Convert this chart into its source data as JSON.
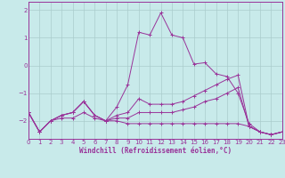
{
  "background_color": "#c8eaea",
  "grid_color": "#aacccc",
  "line_color": "#993399",
  "xlim": [
    0,
    23
  ],
  "ylim": [
    -2.65,
    2.3
  ],
  "yticks": [
    -2,
    -1,
    0,
    1,
    2
  ],
  "xticks": [
    0,
    1,
    2,
    3,
    4,
    5,
    6,
    7,
    8,
    9,
    10,
    11,
    12,
    13,
    14,
    15,
    16,
    17,
    18,
    19,
    20,
    21,
    22,
    23
  ],
  "xlabel": "Windchill (Refroidissement éolien,°C)",
  "series": [
    {
      "y": [
        -1.7,
        -2.4,
        -2.0,
        -1.8,
        -1.7,
        -1.3,
        -1.8,
        -2.0,
        -1.5,
        -0.7,
        1.2,
        1.1,
        1.9,
        1.1,
        1.0,
        0.05,
        0.1,
        -0.3,
        -0.4,
        -1.0,
        -2.1,
        -2.4,
        -2.5,
        -2.4
      ]
    },
    {
      "y": [
        -1.7,
        -2.4,
        -2.0,
        -1.8,
        -1.7,
        -1.3,
        -1.8,
        -2.0,
        -1.8,
        -1.7,
        -1.2,
        -1.4,
        -1.4,
        -1.4,
        -1.3,
        -1.1,
        -0.9,
        -0.7,
        -0.5,
        -0.35,
        -2.2,
        -2.4,
        -2.5,
        -2.4
      ]
    },
    {
      "y": [
        -1.7,
        -2.4,
        -2.0,
        -1.8,
        -1.7,
        -1.3,
        -1.8,
        -2.0,
        -1.9,
        -1.9,
        -1.7,
        -1.7,
        -1.7,
        -1.7,
        -1.6,
        -1.5,
        -1.3,
        -1.2,
        -1.0,
        -0.8,
        -2.2,
        -2.4,
        -2.5,
        -2.4
      ]
    },
    {
      "y": [
        -1.7,
        -2.4,
        -2.0,
        -1.9,
        -1.9,
        -1.7,
        -1.9,
        -2.0,
        -2.0,
        -2.1,
        -2.1,
        -2.1,
        -2.1,
        -2.1,
        -2.1,
        -2.1,
        -2.1,
        -2.1,
        -2.1,
        -2.1,
        -2.2,
        -2.4,
        -2.5,
        -2.4
      ]
    }
  ]
}
